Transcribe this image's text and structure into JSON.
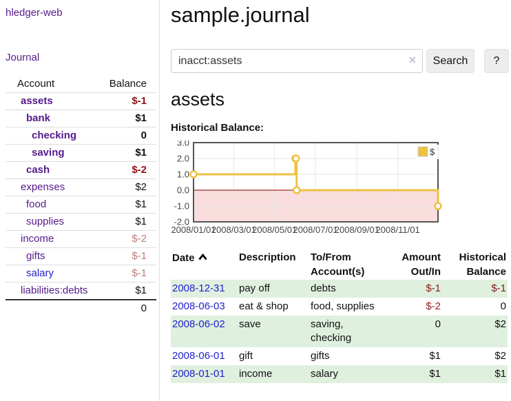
{
  "colors": {
    "link_purple": "#551a8b",
    "link_blue": "#2121cd",
    "negative_strong": "#8b1212",
    "negative_soft": "#bd7a7a",
    "register_negative": "#8b1a1a",
    "row_stripe_green": "#dff0df",
    "series_gold": "#edc240",
    "chart_negative_region": "#fadddd",
    "chart_zero_line": "#8b0000",
    "chart_grid": "#e7e7e7",
    "chart_border": "#545454",
    "axis_text": "#444444"
  },
  "sidebar": {
    "app_title": "hledger-web",
    "journal_link": "Journal",
    "accounts_table": {
      "headers": {
        "account": "Account",
        "balance": "Balance"
      },
      "rows": [
        {
          "name": "assets",
          "level": 1,
          "bold": true,
          "link": "visited",
          "balance": "$-1",
          "balance_style": "neg-strong"
        },
        {
          "name": "bank",
          "level": 2,
          "bold": true,
          "link": "visited",
          "balance": "$1",
          "balance_style": "plain"
        },
        {
          "name": "checking",
          "level": 3,
          "bold": true,
          "link": "visited",
          "balance": "0",
          "balance_style": "plain"
        },
        {
          "name": "saving",
          "level": 3,
          "bold": true,
          "link": "visited",
          "balance": "$1",
          "balance_style": "plain"
        },
        {
          "name": "cash",
          "level": 2,
          "bold": true,
          "link": "visited",
          "balance": "$-2",
          "balance_style": "neg-strong"
        },
        {
          "name": "expenses",
          "level": 1,
          "bold": false,
          "link": "visited",
          "balance": "$2",
          "balance_style": "plain"
        },
        {
          "name": "food",
          "level": 2,
          "bold": false,
          "link": "visited",
          "balance": "$1",
          "balance_style": "plain"
        },
        {
          "name": "supplies",
          "level": 2,
          "bold": false,
          "link": "visited",
          "balance": "$1",
          "balance_style": "plain"
        },
        {
          "name": "income",
          "level": 1,
          "bold": false,
          "link": "visited",
          "balance": "$-2",
          "balance_style": "neg-soft"
        },
        {
          "name": "gifts",
          "level": 2,
          "bold": false,
          "link": "visited",
          "balance": "$-1",
          "balance_style": "neg-soft"
        },
        {
          "name": "salary",
          "level": 2,
          "bold": false,
          "link": "unvisited",
          "balance": "$-1",
          "balance_style": "neg-soft"
        },
        {
          "name": "liabilities:debts",
          "level": 1,
          "bold": false,
          "link": "visited",
          "balance": "$1",
          "balance_style": "plain"
        }
      ],
      "total": "0"
    }
  },
  "header": {
    "title": "sample.journal"
  },
  "search": {
    "value": "inacct:assets",
    "clear_icon": "×",
    "button_label": "Search",
    "help_label": "?"
  },
  "account_page": {
    "heading": "assets",
    "chart_label": "Historical Balance:"
  },
  "chart_data": {
    "type": "line",
    "step": "after",
    "title": "Historical Balance:",
    "xlim": [
      0,
      365
    ],
    "ylim": [
      -2,
      3
    ],
    "x_ticks": [
      {
        "pos": 0,
        "label": "2008/01/01"
      },
      {
        "pos": 60,
        "label": "2008/03/01"
      },
      {
        "pos": 121,
        "label": "2008/05/01"
      },
      {
        "pos": 182,
        "label": "2008/07/01"
      },
      {
        "pos": 244,
        "label": "2008/09/01"
      },
      {
        "pos": 305,
        "label": "2008/11/01"
      }
    ],
    "y_ticks": [
      3.0,
      2.0,
      1.0,
      0.0,
      -1.0,
      -2.0
    ],
    "grid": true,
    "negative_region_below_zero": true,
    "legend": {
      "position": "top-right",
      "entries": [
        {
          "label": "$",
          "color": "#edc240"
        }
      ]
    },
    "series": [
      {
        "name": "$",
        "color": "#edc240",
        "point_dates": [
          "2008-01-01",
          "2008-06-01",
          "2008-06-02",
          "2008-06-03",
          "2008-12-31"
        ],
        "points": [
          [
            0,
            1
          ],
          [
            152,
            2
          ],
          [
            153,
            2
          ],
          [
            154,
            0
          ],
          [
            365,
            -1
          ]
        ]
      }
    ]
  },
  "register": {
    "columns": [
      {
        "label": "Date",
        "sorted": "ascending"
      },
      {
        "label": "Description"
      },
      {
        "label": "To/From Account(s)"
      },
      {
        "label": "Amount Out/In"
      },
      {
        "label": "Historical Balance"
      }
    ],
    "rows": [
      {
        "date": "2008-12-31",
        "description": "pay off",
        "accounts": "debts",
        "amount": "$-1",
        "amount_negative": true,
        "balance": "$-1",
        "balance_negative": true
      },
      {
        "date": "2008-06-03",
        "description": "eat & shop",
        "accounts": "food, supplies",
        "amount": "$-2",
        "amount_negative": true,
        "balance": "0",
        "balance_negative": false
      },
      {
        "date": "2008-06-02",
        "description": "save",
        "accounts": "saving, checking",
        "amount": "0",
        "amount_negative": false,
        "balance": "$2",
        "balance_negative": false
      },
      {
        "date": "2008-06-01",
        "description": "gift",
        "accounts": "gifts",
        "amount": "$1",
        "amount_negative": false,
        "balance": "$2",
        "balance_negative": false
      },
      {
        "date": "2008-01-01",
        "description": "income",
        "accounts": "salary",
        "amount": "$1",
        "amount_negative": false,
        "balance": "$1",
        "balance_negative": false
      }
    ]
  }
}
